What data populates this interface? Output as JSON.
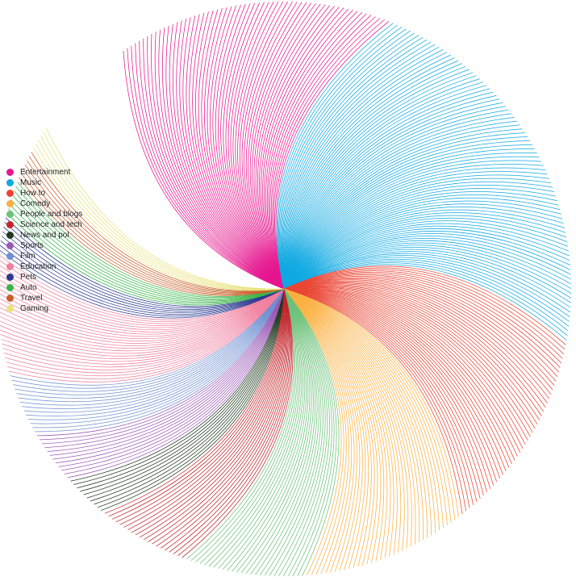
{
  "chart_data": {
    "type": "radial-fan",
    "title": "",
    "legend_position": "left",
    "grid": false,
    "series": [
      {
        "name": "Entertainment",
        "color": "#e6168f",
        "lines": 60
      },
      {
        "name": "Music",
        "color": "#10a9e2",
        "lines": 84
      },
      {
        "name": "How to",
        "color": "#ea4534",
        "lines": 44
      },
      {
        "name": "Comedy",
        "color": "#fbb040",
        "lines": 36
      },
      {
        "name": "People and blogs",
        "color": "#6cc17a",
        "lines": 26
      },
      {
        "name": "Science and tech",
        "color": "#c1272d",
        "lines": 20
      },
      {
        "name": "News and pol",
        "color": "#1f3a1f",
        "lines": 10
      },
      {
        "name": "Sports",
        "color": "#9b59b6",
        "lines": 12
      },
      {
        "name": "Film",
        "color": "#6f8fd1",
        "lines": 14
      },
      {
        "name": "Education",
        "color": "#f07f9e",
        "lines": 26
      },
      {
        "name": "Pets",
        "color": "#2b3990",
        "lines": 8
      },
      {
        "name": "Auto",
        "color": "#39b54a",
        "lines": 8
      },
      {
        "name": "Travel",
        "color": "#c8602a",
        "lines": 7
      },
      {
        "name": "Gaming",
        "color": "#e8e27a",
        "lines": 6
      }
    ]
  }
}
